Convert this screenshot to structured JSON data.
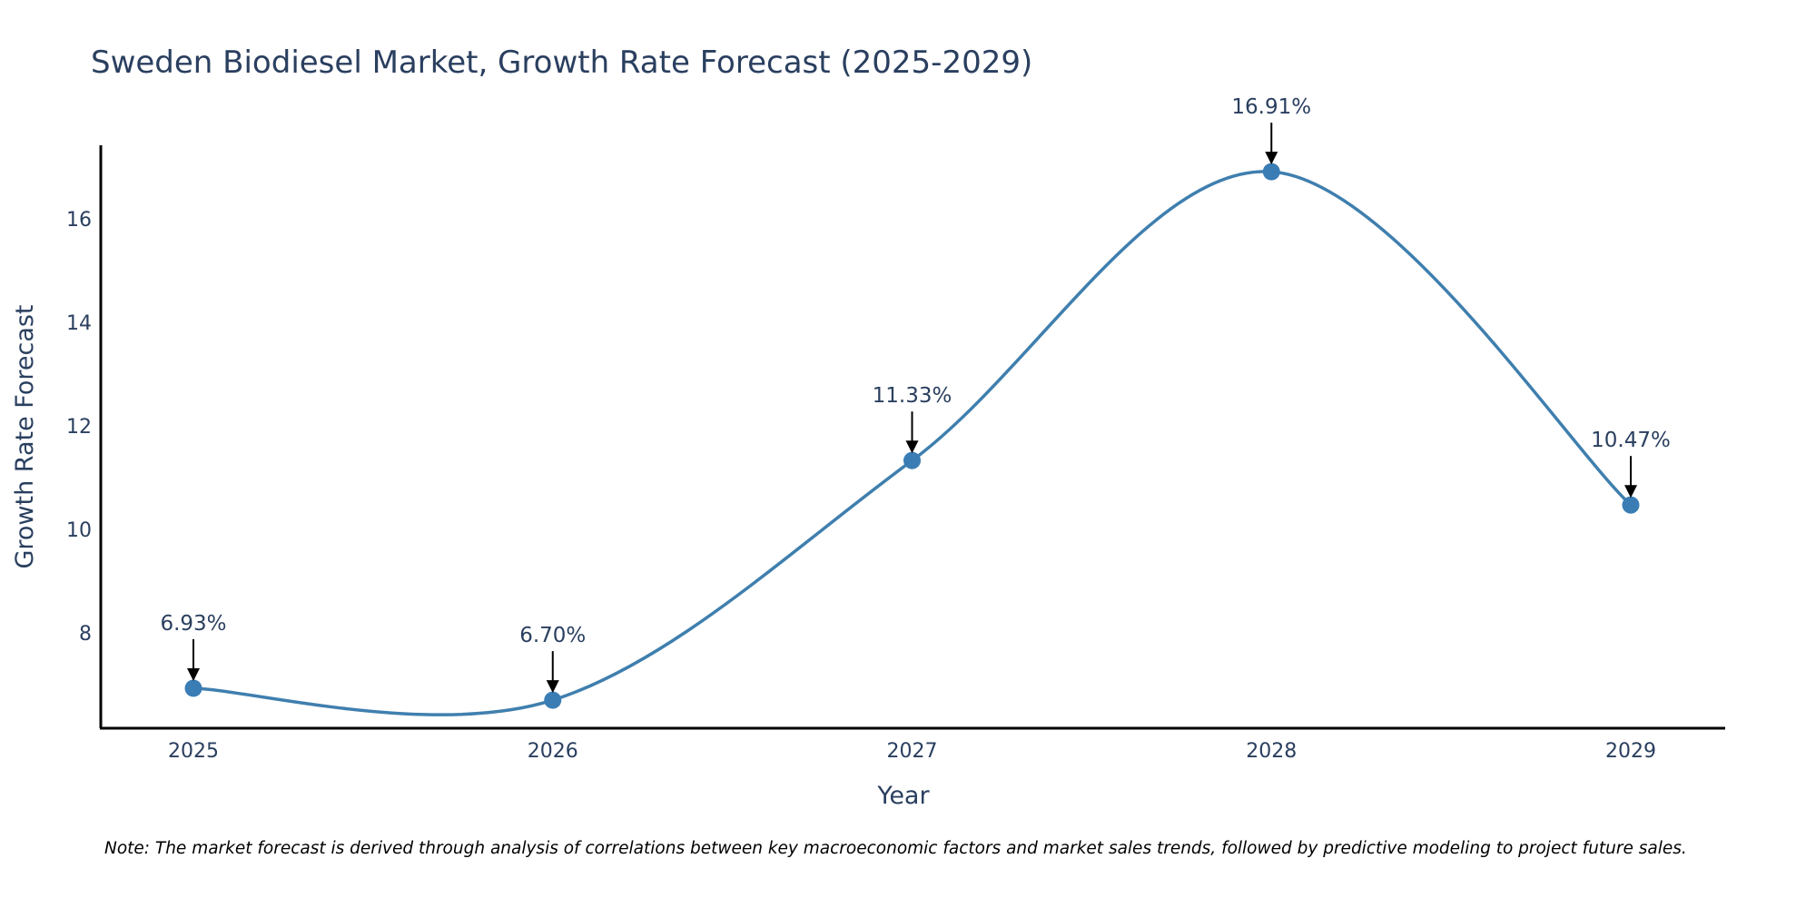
{
  "chart_data": {
    "type": "line",
    "title": "Sweden Biodiesel Market, Growth Rate Forecast (2025-2029)",
    "xlabel": "Year",
    "ylabel": "Growth Rate Forecast",
    "categories": [
      "2025",
      "2026",
      "2027",
      "2028",
      "2029"
    ],
    "series": [
      {
        "name": "Growth Rate Forecast",
        "values": [
          6.93,
          6.7,
          11.33,
          16.91,
          10.47
        ],
        "labels": [
          "6.93%",
          "6.70%",
          "11.33%",
          "16.91%",
          "10.47%"
        ]
      }
    ],
    "ylim": [
      6.2,
      17.4
    ],
    "yticks": [
      8,
      10,
      12,
      14,
      16
    ],
    "yticks_labels": [
      "8",
      "10",
      "12",
      "14",
      "16"
    ],
    "line_shape": "spline",
    "grid": false,
    "legend": "none",
    "note": "Note: The market forecast is derived through analysis of correlations between key macroeconomic factors and market sales trends, followed by predictive modeling to project future sales."
  },
  "colors": {
    "series": "#3f7fae",
    "marker": "#3a7db5",
    "text": "#2a3f5f",
    "axis": "#000000"
  }
}
